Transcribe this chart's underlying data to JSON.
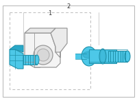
{
  "bg_color": "#ffffff",
  "border_color": "#bbbbbb",
  "highlight_color": "#4dc8e8",
  "highlight_dark": "#2aa8c8",
  "highlight_edge": "#1e90aa",
  "sensor_face": "#f4f4f4",
  "sensor_edge": "#999999",
  "label_1": "1",
  "label_2": "2",
  "figsize": [
    2.0,
    1.47
  ],
  "dpi": 100
}
